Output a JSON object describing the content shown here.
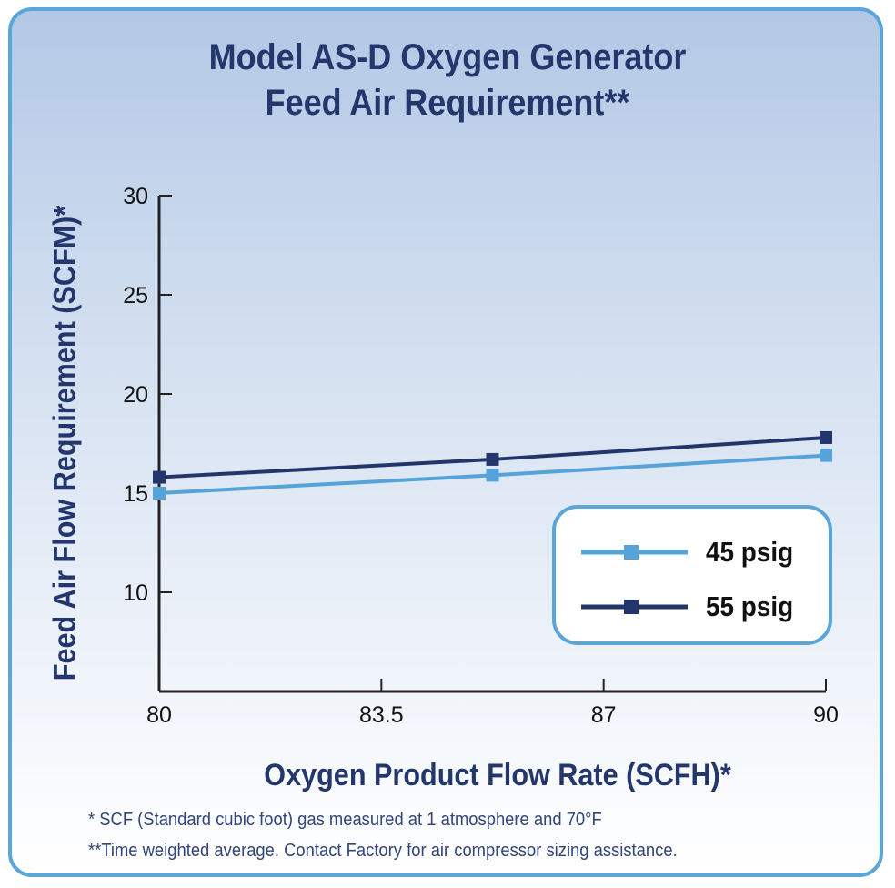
{
  "chart_data": {
    "type": "line",
    "title": [
      "Model AS-D Oxygen Generator",
      "Feed Air Requirement**"
    ],
    "xlabel": "Oxygen Product Flow Rate (SCFH)*",
    "ylabel": "Feed Air Flow Requirement (SCFM)*",
    "xlim": [
      80,
      90
    ],
    "ylim": [
      5,
      30
    ],
    "x_tick_labels": [
      "80",
      "83.5",
      "87",
      "90"
    ],
    "y_ticks": [
      10,
      15,
      20,
      25,
      30
    ],
    "grid": false,
    "legend_position": "bottom-right",
    "x": [
      80,
      85,
      90
    ],
    "series": [
      {
        "name": "45 psig",
        "color": "#55a3d9",
        "values": [
          15.0,
          15.9,
          16.9
        ]
      },
      {
        "name": "55 psig",
        "color": "#23366b",
        "values": [
          15.8,
          16.7,
          17.8
        ]
      }
    ]
  },
  "footnotes": [
    "* SCF (Standard cubic foot) gas measured at 1 atmosphere and 70°F",
    "**Time weighted average. Contact Factory for air compressor sizing assistance."
  ]
}
